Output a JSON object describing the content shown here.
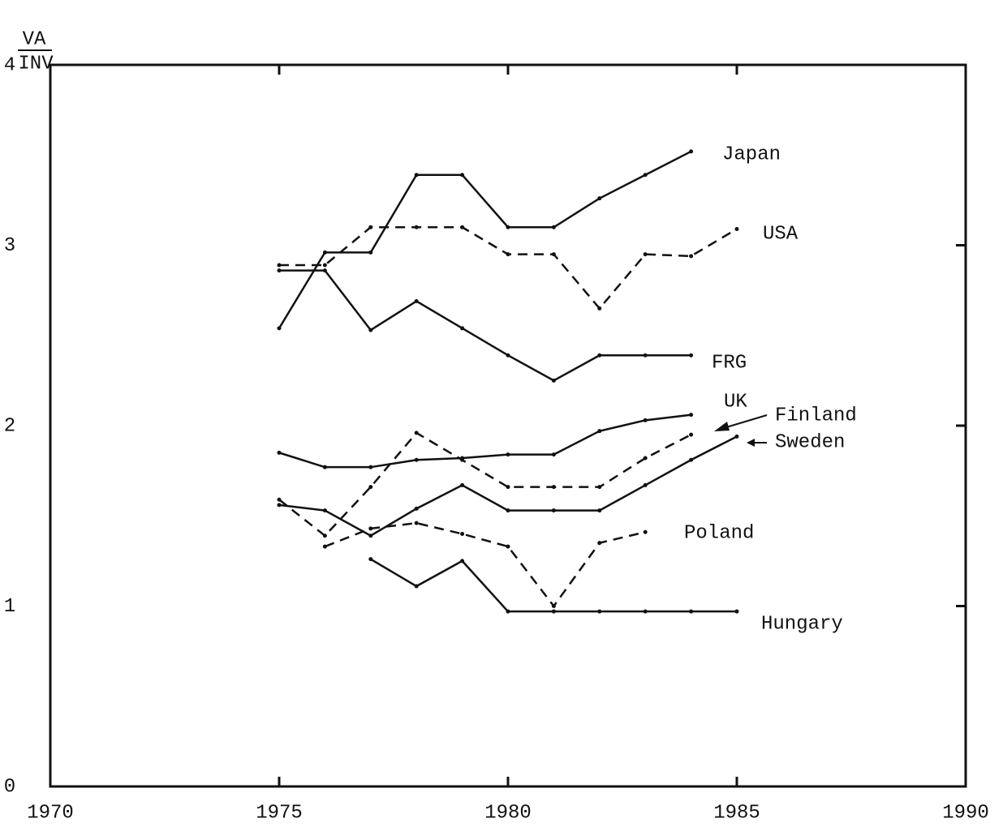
{
  "chart_data": {
    "type": "line",
    "y_label_numerator": "VA",
    "y_label_denominator": "INV",
    "x": [
      1975,
      1976,
      1977,
      1978,
      1979,
      1980,
      1981,
      1982,
      1983,
      1984,
      1985
    ],
    "xlim": [
      1970,
      1990
    ],
    "xticks": [
      1970,
      1975,
      1980,
      1985,
      1990
    ],
    "ylim": [
      0,
      4
    ],
    "yticks": [
      0,
      1,
      2,
      3,
      4
    ],
    "grid": false,
    "series": [
      {
        "name": "Japan",
        "color": "#111111",
        "dashed": false,
        "values": [
          2.54,
          2.96,
          2.96,
          3.39,
          3.39,
          3.1,
          3.1,
          3.26,
          3.39,
          3.52,
          null
        ]
      },
      {
        "name": "USA",
        "color": "#111111",
        "dashed": true,
        "values": [
          2.89,
          2.89,
          3.1,
          3.1,
          3.1,
          2.95,
          2.95,
          2.65,
          2.95,
          2.94,
          3.09
        ]
      },
      {
        "name": "FRG",
        "color": "#111111",
        "dashed": false,
        "values": [
          2.86,
          2.86,
          2.53,
          2.69,
          2.54,
          2.39,
          2.25,
          2.39,
          2.39,
          2.39,
          null
        ]
      },
      {
        "name": "UK",
        "color": "#111111",
        "dashed": false,
        "values": [
          1.85,
          1.77,
          1.77,
          1.81,
          1.82,
          1.84,
          1.84,
          1.97,
          2.03,
          2.06,
          null
        ]
      },
      {
        "name": "Finland",
        "color": "#111111",
        "dashed": true,
        "values": [
          1.59,
          1.39,
          1.66,
          1.96,
          1.81,
          1.66,
          1.66,
          1.66,
          1.82,
          1.95,
          null
        ]
      },
      {
        "name": "Sweden",
        "color": "#111111",
        "dashed": false,
        "values": [
          1.56,
          1.53,
          1.39,
          1.54,
          1.67,
          1.53,
          1.53,
          1.53,
          1.67,
          1.81,
          1.94
        ]
      },
      {
        "name": "Poland",
        "color": "#111111",
        "dashed": true,
        "values": [
          null,
          1.33,
          1.43,
          1.46,
          1.4,
          1.33,
          1.0,
          1.35,
          1.41,
          null,
          null
        ]
      },
      {
        "name": "Hungary",
        "color": "#111111",
        "dashed": false,
        "values": [
          null,
          null,
          1.26,
          1.11,
          1.25,
          0.97,
          0.97,
          0.97,
          0.97,
          0.97,
          0.97
        ]
      }
    ]
  }
}
